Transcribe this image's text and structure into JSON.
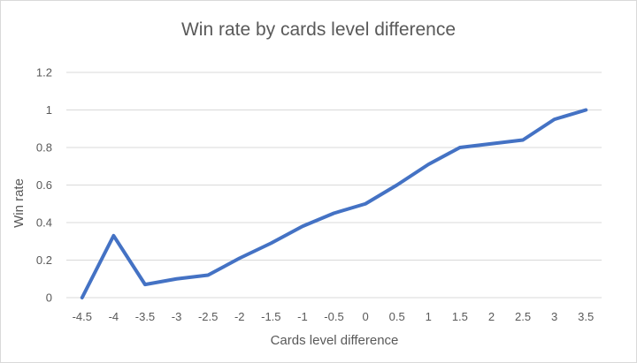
{
  "chart_data": {
    "type": "line",
    "title": "Win rate by cards level difference",
    "xlabel": "Cards level difference",
    "ylabel": "Win rate",
    "categories": [
      "-4.5",
      "-4",
      "-3.5",
      "-3",
      "-2.5",
      "-2",
      "-1.5",
      "-1",
      "-0.5",
      "0",
      "0.5",
      "1",
      "1.5",
      "2",
      "2.5",
      "3",
      "3.5"
    ],
    "yticks": [
      "0",
      "0.2",
      "0.4",
      "0.6",
      "0.8",
      "1",
      "1.2"
    ],
    "ylim": [
      0,
      1.2
    ],
    "grid": true,
    "legend": "none",
    "series": [
      {
        "values": [
          0.0,
          0.33,
          0.07,
          0.1,
          0.12,
          0.21,
          0.29,
          0.38,
          0.45,
          0.5,
          0.6,
          0.71,
          0.8,
          0.82,
          0.84,
          0.95,
          1.0
        ],
        "color": "#4472c4"
      }
    ]
  }
}
